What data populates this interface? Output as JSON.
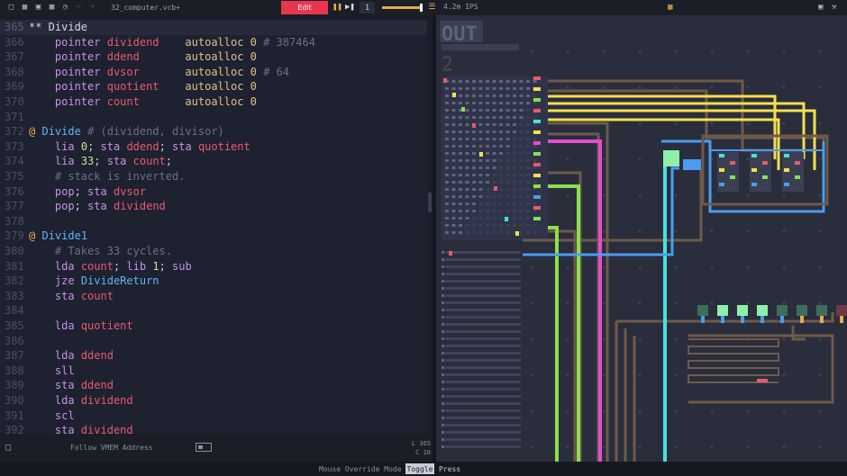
{
  "toolbar": {
    "filename": "32_computer.vcb+",
    "edit_label": "Edit",
    "step_count": "1",
    "speed_level": 1.0,
    "ips": "4.2m IPS",
    "icons": [
      "new-file-icon",
      "open-folder-icon",
      "save-icon",
      "save-as-icon",
      "history-icon",
      "undo-icon",
      "redo-icon",
      "pause-icon",
      "step-icon",
      "layers-icon",
      "grid-icon",
      "save-icon",
      "wrench-icon"
    ]
  },
  "editor": {
    "lines": [
      {
        "num": "365",
        "current": true,
        "tokens": [
          [
            "h",
            "** Divide"
          ]
        ]
      },
      {
        "num": "366",
        "tokens": [
          [
            "p",
            "    "
          ],
          [
            "k",
            "pointer"
          ],
          [
            "p",
            " "
          ],
          [
            "n",
            "dividend"
          ],
          [
            "p",
            "    "
          ],
          [
            "a",
            "autoalloc 0"
          ],
          [
            "c",
            " # 387464"
          ]
        ]
      },
      {
        "num": "367",
        "tokens": [
          [
            "p",
            "    "
          ],
          [
            "k",
            "pointer"
          ],
          [
            "p",
            " "
          ],
          [
            "n",
            "ddend"
          ],
          [
            "p",
            "       "
          ],
          [
            "a",
            "autoalloc 0"
          ]
        ]
      },
      {
        "num": "368",
        "tokens": [
          [
            "p",
            "    "
          ],
          [
            "k",
            "pointer"
          ],
          [
            "p",
            " "
          ],
          [
            "n",
            "dvsor"
          ],
          [
            "p",
            "       "
          ],
          [
            "a",
            "autoalloc 0"
          ],
          [
            "c",
            " # 64"
          ]
        ]
      },
      {
        "num": "369",
        "tokens": [
          [
            "p",
            "    "
          ],
          [
            "k",
            "pointer"
          ],
          [
            "p",
            " "
          ],
          [
            "n",
            "quotient"
          ],
          [
            "p",
            "    "
          ],
          [
            "a",
            "autoalloc 0"
          ]
        ]
      },
      {
        "num": "370",
        "tokens": [
          [
            "p",
            "    "
          ],
          [
            "k",
            "pointer"
          ],
          [
            "p",
            " "
          ],
          [
            "n",
            "count"
          ],
          [
            "p",
            "       "
          ],
          [
            "a",
            "autoalloc 0"
          ]
        ]
      },
      {
        "num": "371",
        "tokens": []
      },
      {
        "num": "372",
        "tokens": [
          [
            "at",
            "@"
          ],
          [
            "p",
            " "
          ],
          [
            "fn",
            "Divide"
          ],
          [
            "c",
            " # (dividend, divisor)"
          ]
        ]
      },
      {
        "num": "373",
        "tokens": [
          [
            "p",
            "    "
          ],
          [
            "k",
            "lia"
          ],
          [
            "p",
            " "
          ],
          [
            "num",
            "0"
          ],
          [
            "p",
            "; "
          ],
          [
            "k",
            "sta"
          ],
          [
            "p",
            " "
          ],
          [
            "n",
            "ddend"
          ],
          [
            "p",
            "; "
          ],
          [
            "k",
            "sta"
          ],
          [
            "p",
            " "
          ],
          [
            "n",
            "quotient"
          ]
        ]
      },
      {
        "num": "374",
        "tokens": [
          [
            "p",
            "    "
          ],
          [
            "k",
            "lia"
          ],
          [
            "p",
            " "
          ],
          [
            "num",
            "33"
          ],
          [
            "p",
            "; "
          ],
          [
            "k",
            "sta"
          ],
          [
            "p",
            " "
          ],
          [
            "n",
            "count"
          ],
          [
            "p",
            ";"
          ]
        ]
      },
      {
        "num": "375",
        "tokens": [
          [
            "c",
            "    # stack is inverted."
          ]
        ]
      },
      {
        "num": "376",
        "tokens": [
          [
            "p",
            "    "
          ],
          [
            "k",
            "pop"
          ],
          [
            "p",
            "; "
          ],
          [
            "k",
            "sta"
          ],
          [
            "p",
            " "
          ],
          [
            "n",
            "dvsor"
          ]
        ]
      },
      {
        "num": "377",
        "tokens": [
          [
            "p",
            "    "
          ],
          [
            "k",
            "pop"
          ],
          [
            "p",
            "; "
          ],
          [
            "k",
            "sta"
          ],
          [
            "p",
            " "
          ],
          [
            "n",
            "dividend"
          ]
        ]
      },
      {
        "num": "378",
        "tokens": []
      },
      {
        "num": "379",
        "tokens": [
          [
            "at",
            "@"
          ],
          [
            "p",
            " "
          ],
          [
            "fn",
            "Divide1"
          ]
        ]
      },
      {
        "num": "380",
        "tokens": [
          [
            "c",
            "    # Takes 33 cycles."
          ]
        ]
      },
      {
        "num": "381",
        "tokens": [
          [
            "p",
            "    "
          ],
          [
            "k",
            "lda"
          ],
          [
            "p",
            " "
          ],
          [
            "n",
            "count"
          ],
          [
            "p",
            "; "
          ],
          [
            "k",
            "lib"
          ],
          [
            "p",
            " "
          ],
          [
            "num",
            "1"
          ],
          [
            "p",
            "; "
          ],
          [
            "k",
            "sub"
          ]
        ]
      },
      {
        "num": "382",
        "tokens": [
          [
            "p",
            "    "
          ],
          [
            "k",
            "jze"
          ],
          [
            "p",
            " "
          ],
          [
            "fn",
            "DivideReturn"
          ]
        ]
      },
      {
        "num": "383",
        "tokens": [
          [
            "p",
            "    "
          ],
          [
            "k",
            "sta"
          ],
          [
            "p",
            " "
          ],
          [
            "n",
            "count"
          ]
        ]
      },
      {
        "num": "384",
        "tokens": []
      },
      {
        "num": "385",
        "tokens": [
          [
            "p",
            "    "
          ],
          [
            "k",
            "lda"
          ],
          [
            "p",
            " "
          ],
          [
            "n",
            "quotient"
          ]
        ]
      },
      {
        "num": "386",
        "tokens": []
      },
      {
        "num": "387",
        "tokens": [
          [
            "p",
            "    "
          ],
          [
            "k",
            "lda"
          ],
          [
            "p",
            " "
          ],
          [
            "n",
            "ddend"
          ]
        ]
      },
      {
        "num": "388",
        "tokens": [
          [
            "p",
            "    "
          ],
          [
            "k",
            "sll"
          ]
        ]
      },
      {
        "num": "389",
        "tokens": [
          [
            "p",
            "    "
          ],
          [
            "k",
            "sta"
          ],
          [
            "p",
            " "
          ],
          [
            "n",
            "ddend"
          ]
        ]
      },
      {
        "num": "390",
        "tokens": [
          [
            "p",
            "    "
          ],
          [
            "k",
            "lda"
          ],
          [
            "p",
            " "
          ],
          [
            "n",
            "dividend"
          ]
        ]
      },
      {
        "num": "391",
        "tokens": [
          [
            "p",
            "    "
          ],
          [
            "k",
            "scl"
          ]
        ]
      },
      {
        "num": "392",
        "tokens": [
          [
            "p",
            "    "
          ],
          [
            "k",
            "sta"
          ],
          [
            "p",
            " "
          ],
          [
            "n",
            "dividend"
          ]
        ]
      }
    ]
  },
  "footer": {
    "follow_label": "Follow VMEM Address",
    "line_label": "L 365",
    "col_label": "C 10"
  },
  "status": {
    "mouse_mode_label": "Mouse Override Mode",
    "toggle_label": "Toggle",
    "press_label": "Press"
  },
  "canvas": {
    "out_label": "OUT",
    "out_sub": "2",
    "colors": {
      "background": "#2a2d3c",
      "wire_yellow": "#f4e04d",
      "wire_magenta": "#e84ccf",
      "wire_green": "#8be04a",
      "wire_cyan": "#4ae0e0",
      "wire_blue": "#4a9cf0",
      "wire_brown": "#6e5a4a",
      "node_green": "#8ef0a8"
    }
  }
}
